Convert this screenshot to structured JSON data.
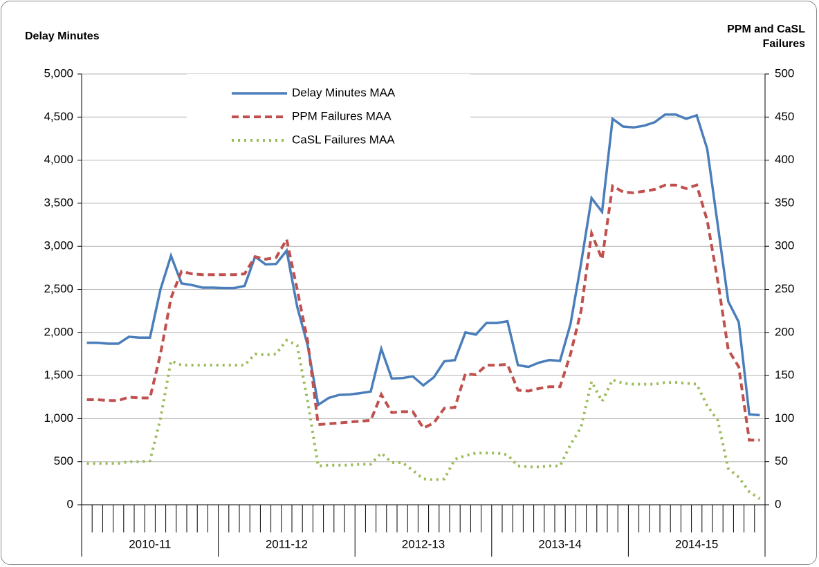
{
  "chart_data": {
    "type": "line",
    "ylabel": "Delay Minutes",
    "y2label": "PPM and CaSL Failures",
    "categories": [
      null,
      null,
      null,
      null,
      null,
      null,
      null,
      null,
      null,
      null,
      null,
      null,
      null,
      null,
      null,
      null,
      null,
      null,
      null,
      null,
      null,
      null,
      null,
      null,
      null,
      null,
      null,
      null,
      null,
      null,
      null,
      null,
      null,
      null,
      null,
      null,
      null,
      null,
      null,
      null,
      null,
      null,
      null,
      null,
      null,
      null,
      null,
      null,
      null,
      null,
      null,
      null,
      null,
      null,
      null,
      null,
      null,
      null,
      null,
      null,
      null,
      null,
      null,
      null,
      null
    ],
    "groups": [
      "2010-11",
      "2011-12",
      "2012-13",
      "2013-14",
      "2014-15"
    ],
    "ylim": [
      0,
      5000
    ],
    "yticks": [
      0,
      500,
      {
        "value": 1000,
        "label": "1,000"
      },
      {
        "value": 1500,
        "label": "1,500"
      },
      {
        "value": 2000,
        "label": "2,000"
      },
      {
        "value": 2500,
        "label": "2,500"
      },
      {
        "value": 3000,
        "label": "3,000"
      },
      {
        "value": 3500,
        "label": "3,500"
      },
      {
        "value": 4000,
        "label": "4,000"
      },
      {
        "value": 4500,
        "label": "4,500"
      },
      {
        "value": 5000,
        "label": "5,000"
      }
    ],
    "y2lim": [
      0,
      500
    ],
    "y2ticks": [
      0,
      50,
      100,
      150,
      200,
      250,
      300,
      350,
      400,
      450,
      500
    ],
    "grid": true,
    "legend": "top-center",
    "series": [
      {
        "name": "Delay Minutes MAA",
        "color": "#4a7ebb",
        "dash": "solid",
        "values": [
          1880,
          1880,
          1870,
          1870,
          1950,
          1940,
          1940,
          2500,
          2890,
          2570,
          2550,
          2520,
          2520,
          2515,
          2515,
          2540,
          2880,
          2790,
          2795,
          2950,
          2300,
          1850,
          1160,
          1240,
          1275,
          1280,
          1295,
          1315,
          1810,
          1465,
          1470,
          1490,
          1385,
          1480,
          1665,
          1680,
          2000,
          1975,
          2110,
          2110,
          2130,
          1620,
          1600,
          1650,
          1680,
          1670,
          2100,
          2800,
          3560,
          3400,
          4480,
          4390,
          4380,
          4400,
          4440,
          4530,
          4530,
          4480,
          4520,
          4130,
          3250,
          2360,
          2120,
          1050,
          1040
        ]
      },
      {
        "name": "PPM Failures MAA",
        "color": "#c0504d",
        "dash": "dashed",
        "axis": "y2",
        "values": [
          122,
          122,
          121,
          121,
          125,
          124,
          124,
          175,
          240,
          271,
          268,
          267,
          267,
          267,
          267,
          268,
          288,
          285,
          287,
          308,
          250,
          190,
          93,
          94,
          95,
          96,
          97,
          98,
          128,
          107,
          108,
          108,
          89,
          95,
          112,
          113,
          152,
          151,
          162,
          162,
          163,
          133,
          132,
          135,
          137,
          137,
          175,
          225,
          315,
          285,
          370,
          363,
          362,
          364,
          366,
          371,
          371,
          367,
          371,
          330,
          260,
          180,
          160,
          75,
          75
        ]
      },
      {
        "name": "CaSL Failures MAA",
        "color": "#9bbb59",
        "dash": "dotted",
        "axis": "y2",
        "values": [
          48,
          48,
          48,
          48,
          50,
          50,
          51,
          100,
          167,
          162,
          162,
          162,
          162,
          162,
          162,
          162,
          175,
          174,
          175,
          191,
          185,
          120,
          45,
          46,
          46,
          46,
          47,
          47,
          60,
          49,
          49,
          40,
          30,
          29,
          30,
          53,
          57,
          60,
          60,
          60,
          58,
          45,
          44,
          44,
          45,
          45,
          70,
          90,
          143,
          120,
          145,
          141,
          140,
          140,
          140,
          142,
          142,
          141,
          140,
          115,
          98,
          42,
          32,
          15,
          7
        ]
      }
    ]
  }
}
